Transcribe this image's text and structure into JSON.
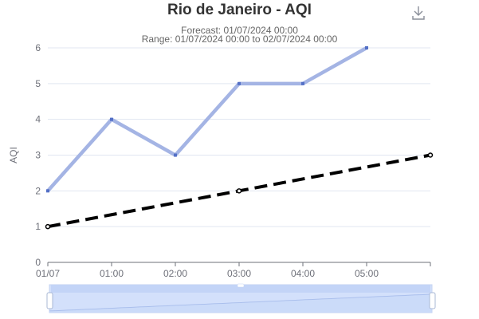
{
  "header": {
    "title": "Rio de Janeiro - AQI",
    "forecast": "Forecast: 01/07/2024 00:00",
    "range": "Range: 01/07/2024 00:00 to 02/07/2024 00:00"
  },
  "toolbar": {
    "download_icon": "download-icon"
  },
  "chart_data": {
    "type": "line",
    "title": "Rio de Janeiro - AQI",
    "ylabel": "AQI",
    "xlabel": "",
    "categories": [
      "01/07",
      "01:00",
      "02:00",
      "03:00",
      "04:00",
      "05:00"
    ],
    "ylim": [
      0,
      6
    ],
    "yticks": [
      0,
      1,
      2,
      3,
      4,
      5,
      6
    ],
    "grid": true,
    "series": [
      {
        "values": [
          2,
          4,
          3,
          5,
          5,
          6
        ],
        "color": "#a4b4e4",
        "style": "solid"
      },
      {
        "x": [
          0,
          3,
          6
        ],
        "values": [
          1,
          2,
          3
        ],
        "color": "#000000",
        "style": "dashed"
      }
    ]
  },
  "zoom": {
    "start": 0,
    "end": 100,
    "fill_color": "#d3e0fb",
    "handle_color": "#ffffff"
  }
}
